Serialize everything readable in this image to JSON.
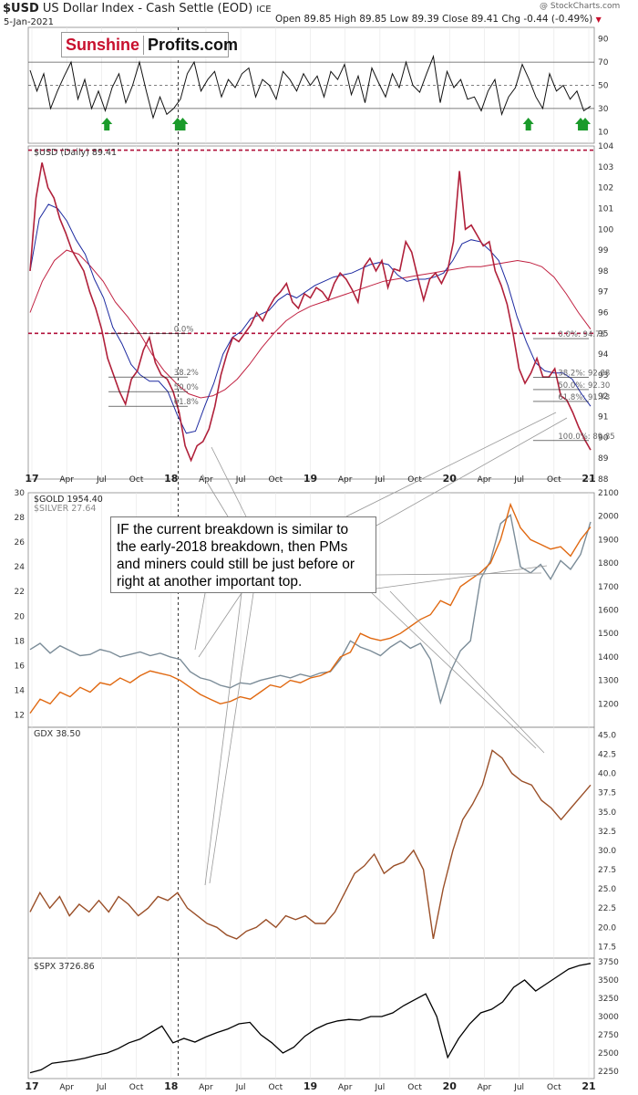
{
  "header": {
    "symbol": "$USD",
    "name": "US Dollar Index - Cash Settle (EOD)",
    "exchange": "ICE",
    "date": "5-Jan-2021",
    "quote": "Open 89.85  High 89.85  Low 89.39  Close 89.41  Chg -0.44 (-0.49%)",
    "arrow": "▼",
    "watermark": "@ StockCharts.com"
  },
  "logo": {
    "part1": "Sunshine",
    "part2": "Profits.com"
  },
  "callout": "IF the current breakdown is similar to the early-2018 breakdown, then PMs and miners could still be just before or right at another important top.",
  "colors": {
    "usd": "#b0203a",
    "ma50": "#1d2aa0",
    "ma200": "#c02040",
    "gold": "#e06810",
    "silver": "#7b8c98",
    "gdx": "#9a4f28",
    "spx": "#000000",
    "marker": "#1a9a2a"
  },
  "x_axis": {
    "labels": [
      "17",
      "Apr",
      "Jul",
      "Oct",
      "18",
      "Apr",
      "Jul",
      "Oct",
      "19",
      "Apr",
      "Jul",
      "Oct",
      "20",
      "Apr",
      "Jul",
      "Oct",
      "21"
    ],
    "bold": [
      "17",
      "18",
      "19",
      "20",
      "21"
    ]
  },
  "chart_data": [
    {
      "type": "line",
      "title": "",
      "ylim": [
        0,
        100
      ],
      "y_ticks": [
        "90",
        "70",
        "50",
        "30",
        "10"
      ],
      "reference_lines": [
        70,
        50,
        30
      ],
      "series": [
        {
          "values": [
            63,
            45,
            60,
            30,
            45,
            58,
            70,
            38,
            55,
            30,
            45,
            28,
            48,
            60,
            35,
            50,
            70,
            45,
            22,
            40,
            25,
            30,
            38,
            60,
            70,
            45,
            55,
            62,
            40,
            55,
            48,
            60,
            65,
            40,
            55,
            50,
            38,
            62,
            55,
            45,
            60,
            50,
            58,
            40,
            62,
            55,
            68,
            42,
            58,
            35,
            65,
            52,
            40,
            60,
            48,
            70,
            50,
            44,
            60,
            75,
            35,
            62,
            48,
            55,
            38,
            40,
            28,
            45,
            55,
            25,
            40,
            48,
            68,
            55,
            40,
            30,
            60,
            45,
            50,
            38,
            45,
            28,
            32
          ]
        }
      ],
      "buy_signal_dates": [
        "2017-07-15",
        "2018-01-18",
        "2018-02-01",
        "2020-07-25",
        "2020-12-10",
        "2020-12-22"
      ]
    },
    {
      "type": "line",
      "title": "$USD (Daily) 89.41",
      "ylim": [
        88,
        104
      ],
      "y_ticks": [
        "104",
        "103",
        "102",
        "101",
        "100",
        "99",
        "98",
        "97",
        "96",
        "95",
        "94",
        "93",
        "92",
        "91",
        "90",
        "89",
        "88"
      ],
      "series": [
        {
          "name": "$USD",
          "values": [
            98.0,
            101.5,
            103.2,
            102.0,
            101.5,
            100.5,
            99.8,
            99.0,
            98.5,
            98.0,
            97.0,
            96.2,
            95.2,
            93.8,
            93.0,
            92.2,
            91.6,
            92.8,
            93.2,
            94.2,
            94.8,
            93.6,
            93.0,
            92.8,
            92.2,
            91.2,
            89.6,
            88.9,
            89.6,
            89.8,
            90.4,
            91.5,
            93.0,
            94.0,
            94.8,
            94.6,
            95.0,
            95.4,
            96.0,
            95.6,
            96.2,
            96.7,
            97.0,
            97.4,
            96.5,
            96.2,
            96.9,
            96.7,
            97.2,
            97.0,
            96.6,
            97.4,
            97.9,
            97.6,
            97.1,
            96.5,
            98.2,
            98.6,
            98.0,
            98.5,
            97.2,
            98.1,
            98.0,
            99.4,
            98.9,
            97.7,
            96.6,
            97.6,
            97.9,
            97.4,
            98.0,
            99.4,
            102.8,
            100.0,
            100.2,
            99.7,
            99.2,
            99.4,
            98.0,
            97.3,
            96.4,
            95.0,
            93.3,
            92.6,
            93.1,
            93.8,
            92.9,
            92.9,
            93.3,
            92.0,
            91.8,
            91.2,
            90.5,
            89.9,
            89.4
          ]
        },
        {
          "name": "50-day MA",
          "values": [
            98.0,
            100.5,
            101.2,
            101.0,
            100.4,
            99.5,
            98.8,
            97.6,
            96.7,
            95.3,
            94.5,
            93.5,
            93.0,
            92.7,
            92.7,
            92.2,
            91.1,
            90.2,
            90.3,
            91.5,
            92.6,
            94.0,
            94.8,
            95.1,
            95.7,
            95.9,
            96.1,
            96.6,
            96.9,
            96.7,
            97.0,
            97.3,
            97.5,
            97.7,
            97.8,
            97.9,
            98.1,
            98.3,
            98.4,
            98.3,
            97.8,
            97.5,
            97.6,
            97.6,
            97.7,
            97.9,
            98.5,
            99.3,
            99.5,
            99.4,
            99.0,
            98.5,
            97.3,
            95.8,
            94.6,
            93.6,
            93.2,
            93.1,
            93.1,
            92.8,
            92.1,
            91.5
          ]
        },
        {
          "name": "200-day MA",
          "values": [
            96.0,
            97.5,
            98.5,
            99.0,
            98.8,
            98.2,
            97.5,
            96.5,
            95.8,
            95.0,
            94.0,
            93.2,
            92.6,
            92.1,
            91.9,
            92.0,
            92.3,
            92.8,
            93.5,
            94.3,
            95.0,
            95.6,
            96.0,
            96.3,
            96.5,
            96.7,
            96.9,
            97.1,
            97.3,
            97.5,
            97.6,
            97.7,
            97.8,
            97.9,
            98.0,
            98.1,
            98.2,
            98.2,
            98.3,
            98.4,
            98.5,
            98.4,
            98.2,
            97.7,
            96.9,
            96.0,
            95.2
          ]
        }
      ],
      "annotations": [
        {
          "text": "0.0%",
          "y": 95.0
        },
        {
          "text": "38.2%",
          "y": 92.9
        },
        {
          "text": "50.0%",
          "y": 92.2
        },
        {
          "text": "61.8%",
          "y": 91.5
        },
        {
          "text": "0.0%: 94.75",
          "y": 94.75
        },
        {
          "text": "38.2%: 92.88",
          "y": 92.88
        },
        {
          "text": "50.0%: 92.30",
          "y": 92.3
        },
        {
          "text": "61.8%: 91.73",
          "y": 91.73
        },
        {
          "text": "100.0%: 89.85",
          "y": 89.85
        }
      ],
      "reference_lines": [
        103.8,
        95.0
      ]
    },
    {
      "type": "line",
      "title": "",
      "y_ticks_left": [
        "30",
        "28",
        "26",
        "24",
        "22",
        "20",
        "18",
        "16",
        "14",
        "12"
      ],
      "y_ticks_right": [
        "2100",
        "2000",
        "1900",
        "1800",
        "1700",
        "1600",
        "1500",
        "1400",
        "1300",
        "1200"
      ],
      "series": [
        {
          "name": "$GOLD 1954.40",
          "axis": "right",
          "ylim": [
            1100,
            2100
          ],
          "values": [
            1160,
            1220,
            1200,
            1250,
            1230,
            1270,
            1250,
            1290,
            1280,
            1310,
            1290,
            1320,
            1340,
            1330,
            1320,
            1300,
            1270,
            1240,
            1220,
            1200,
            1210,
            1230,
            1220,
            1250,
            1280,
            1270,
            1300,
            1290,
            1310,
            1320,
            1340,
            1400,
            1420,
            1500,
            1480,
            1470,
            1480,
            1500,
            1530,
            1560,
            1580,
            1640,
            1620,
            1700,
            1730,
            1760,
            1800,
            1900,
            2050,
            1950,
            1900,
            1880,
            1860,
            1870,
            1830,
            1900,
            1954
          ]
        },
        {
          "name": "$SILVER 27.64",
          "axis": "left",
          "ylim": [
            11,
            30
          ],
          "values": [
            17.3,
            17.8,
            17.0,
            17.6,
            17.2,
            16.8,
            16.9,
            17.3,
            17.1,
            16.7,
            16.9,
            17.1,
            16.8,
            17.0,
            16.7,
            16.5,
            15.5,
            15.0,
            14.8,
            14.4,
            14.2,
            14.6,
            14.5,
            14.8,
            15.0,
            15.2,
            15.0,
            15.3,
            15.1,
            15.4,
            15.5,
            16.5,
            18.0,
            17.5,
            17.2,
            16.8,
            17.5,
            18.0,
            17.4,
            17.8,
            16.5,
            13.0,
            15.5,
            17.2,
            18.0,
            23.0,
            24.5,
            27.5,
            28.2,
            24.0,
            23.5,
            24.2,
            23.0,
            24.5,
            23.8,
            25.0,
            27.64
          ]
        }
      ]
    },
    {
      "type": "line",
      "title": "GDX 38.50",
      "ylim": [
        16,
        46
      ],
      "y_ticks": [
        "45.0",
        "42.5",
        "40.0",
        "37.5",
        "35.0",
        "32.5",
        "30.0",
        "27.5",
        "25.0",
        "22.5",
        "20.0",
        "17.5"
      ],
      "series": [
        {
          "name": "GDX",
          "values": [
            22.0,
            24.5,
            22.5,
            24.0,
            21.5,
            23.0,
            22.0,
            23.5,
            22.0,
            24.0,
            23.0,
            21.5,
            22.5,
            24.0,
            23.5,
            24.5,
            22.5,
            21.5,
            20.5,
            20.0,
            19.0,
            18.5,
            19.5,
            20.0,
            21.0,
            20.0,
            21.5,
            21.0,
            21.5,
            20.5,
            20.5,
            22.0,
            24.5,
            27.0,
            28.0,
            29.5,
            27.0,
            28.0,
            28.5,
            30.0,
            27.5,
            18.5,
            25.0,
            30.0,
            34.0,
            36.0,
            38.5,
            43.0,
            42.0,
            40.0,
            39.0,
            38.5,
            36.5,
            35.5,
            34.0,
            35.5,
            37.0,
            38.5
          ]
        }
      ]
    },
    {
      "type": "line",
      "title": "$SPX 3726.86",
      "ylim": [
        2150,
        3800
      ],
      "y_ticks": [
        "3750",
        "3500",
        "3250",
        "3000",
        "2750",
        "2500",
        "2250"
      ],
      "series": [
        {
          "name": "$SPX",
          "values": [
            2230,
            2270,
            2360,
            2380,
            2400,
            2430,
            2470,
            2500,
            2560,
            2640,
            2690,
            2780,
            2870,
            2640,
            2700,
            2650,
            2720,
            2780,
            2830,
            2900,
            2920,
            2750,
            2640,
            2500,
            2580,
            2730,
            2830,
            2900,
            2940,
            2960,
            2950,
            3000,
            3000,
            3050,
            3150,
            3230,
            3310,
            3000,
            2440,
            2700,
            2900,
            3050,
            3100,
            3200,
            3400,
            3500,
            3350,
            3450,
            3550,
            3650,
            3700,
            3727
          ]
        }
      ]
    }
  ]
}
